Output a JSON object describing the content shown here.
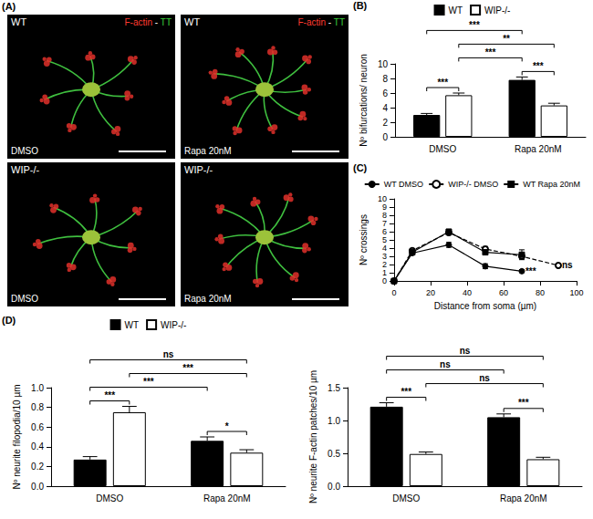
{
  "micrographs": {
    "panel_label": "(A)",
    "images": [
      {
        "genotype": "WT",
        "treatment": "DMSO",
        "stain": [
          {
            "text": "F-actin",
            "color": "#ff3b30"
          },
          {
            "text": " - ",
            "color": "#ffffff"
          },
          {
            "text": "TT",
            "color": "#3cd23c"
          }
        ]
      },
      {
        "genotype": "WT",
        "treatment": "Rapa 20nM",
        "stain": [
          {
            "text": "F-actin",
            "color": "#ff3b30"
          },
          {
            "text": " - ",
            "color": "#ffffff"
          },
          {
            "text": "TT",
            "color": "#3cd23c"
          }
        ]
      },
      {
        "genotype": "WIP-/-",
        "treatment": "DMSO"
      },
      {
        "genotype": "WIP-/-",
        "treatment": "Rapa 20nM"
      }
    ]
  },
  "chart_data": [
    {
      "panel_label": "(B)",
      "type": "bar",
      "categories": [
        "DMSO",
        "Rapa 20nM"
      ],
      "ylabel": "Nº bifurcations/ neuron",
      "ylim": [
        0,
        10
      ],
      "yticks": [
        0,
        2,
        4,
        6,
        8,
        10
      ],
      "grid": false,
      "legend": "top",
      "series": [
        {
          "name": "WT",
          "color": "#000000",
          "values": [
            3.0,
            7.8
          ],
          "errors": [
            0.2,
            0.4
          ]
        },
        {
          "name": "WIP-/-",
          "color": "#ffffff",
          "values": [
            5.7,
            4.3
          ],
          "errors": [
            0.3,
            0.3
          ]
        }
      ],
      "significance": [
        {
          "between": [
            [
              0,
              0
            ],
            [
              1,
              0
            ]
          ],
          "label": "***"
        },
        {
          "between": [
            [
              0,
              1
            ],
            [
              1,
              1
            ]
          ],
          "label": "***"
        },
        {
          "between": [
            [
              1,
              0
            ],
            [
              0,
              1
            ]
          ],
          "label": "***"
        },
        {
          "between": [
            [
              1,
              0
            ],
            [
              1,
              1
            ]
          ],
          "label": "**"
        },
        {
          "between": [
            [
              0,
              0
            ],
            [
              0,
              1
            ]
          ],
          "label": "***"
        }
      ]
    },
    {
      "panel_label": "(C)",
      "type": "line",
      "xlabel": "Distance from soma (µm)",
      "ylabel": "Nº crossings",
      "xlim": [
        0,
        100
      ],
      "xticks": [
        0,
        20,
        40,
        60,
        80,
        100
      ],
      "ylim": [
        0,
        10
      ],
      "yticks": [
        0,
        1,
        2,
        3,
        4,
        5,
        6,
        7,
        8,
        9,
        10
      ],
      "grid": false,
      "legend": "top",
      "series": [
        {
          "name": "WT DMSO",
          "color": "#000000",
          "marker": "circle",
          "line_style": "solid",
          "x": [
            0,
            10,
            30,
            50,
            70
          ],
          "values": [
            0,
            3.4,
            4.4,
            1.8,
            1.2
          ],
          "errors": [
            0,
            0.2,
            0.3,
            0.3,
            0.2
          ],
          "significance": "***"
        },
        {
          "name": "WIP-/- DMSO",
          "color": "#000000",
          "marker": "open_circle",
          "line_style": "dashed",
          "x": [
            0,
            10,
            30,
            50,
            70,
            90
          ],
          "values": [
            0,
            3.7,
            5.9,
            3.9,
            3.0,
            1.9
          ],
          "errors": [
            0,
            0.2,
            0.3,
            0.3,
            0.3,
            0.2
          ],
          "significance": "ns"
        },
        {
          "name": "WT Rapa 20nM",
          "color": "#000000",
          "marker": "square",
          "line_style": "solid",
          "x": [
            0,
            10,
            30,
            50,
            70
          ],
          "values": [
            0,
            3.5,
            6.0,
            3.5,
            3.2
          ],
          "errors": [
            0,
            0.3,
            0.3,
            0.3,
            0.6
          ]
        }
      ]
    },
    {
      "panel_label": "(D)",
      "type": "bar",
      "categories": [
        "DMSO",
        "Rapa 20nM"
      ],
      "ylabel": "Nº neurite filopodia/10 µm",
      "ylim": [
        0,
        1
      ],
      "yticks": [
        {
          "value": 0,
          "label": "0.0"
        },
        0.2,
        0.4,
        0.6,
        0.8,
        {
          "value": 1,
          "label": "1.0"
        }
      ],
      "grid": false,
      "legend": "top",
      "series": [
        {
          "name": "WT",
          "color": "#000000",
          "values": [
            0.27,
            0.46
          ],
          "errors": [
            0.03,
            0.04
          ]
        },
        {
          "name": "WIP-/-",
          "color": "#ffffff",
          "values": [
            0.75,
            0.34
          ],
          "errors": [
            0.06,
            0.03
          ]
        }
      ],
      "significance": [
        {
          "between": [
            [
              0,
              0
            ],
            [
              1,
              0
            ]
          ],
          "label": "***"
        },
        {
          "between": [
            [
              0,
              1
            ],
            [
              1,
              1
            ]
          ],
          "label": "*"
        },
        {
          "between": [
            [
              0,
              0
            ],
            [
              0,
              1
            ]
          ],
          "label": "***"
        },
        {
          "between": [
            [
              1,
              0
            ],
            [
              1,
              1
            ]
          ],
          "label": "***"
        },
        {
          "between": [
            [
              0,
              0
            ],
            [
              1,
              1
            ]
          ],
          "label": "ns"
        }
      ]
    },
    {
      "type": "bar",
      "categories": [
        "DMSO",
        "Rapa 20nM"
      ],
      "ylabel": "Nº neurite F-actin patches/10 µm",
      "ylim": [
        0,
        1.5
      ],
      "yticks": [
        {
          "value": 0,
          "label": "0.0"
        },
        0.5,
        {
          "value": 1,
          "label": "1.0"
        },
        1.5
      ],
      "grid": false,
      "series": [
        {
          "name": "WT",
          "color": "#000000",
          "values": [
            1.21,
            1.05
          ],
          "errors": [
            0.06,
            0.05
          ]
        },
        {
          "name": "WIP-/-",
          "color": "#ffffff",
          "values": [
            0.49,
            0.41
          ],
          "errors": [
            0.03,
            0.03
          ]
        }
      ],
      "significance": [
        {
          "between": [
            [
              0,
              0
            ],
            [
              1,
              0
            ]
          ],
          "label": "***"
        },
        {
          "between": [
            [
              0,
              1
            ],
            [
              1,
              1
            ]
          ],
          "label": "***"
        },
        {
          "between": [
            [
              1,
              0
            ],
            [
              1,
              1
            ]
          ],
          "label": "ns"
        },
        {
          "between": [
            [
              0,
              0
            ],
            [
              0,
              1
            ]
          ],
          "label": "ns"
        },
        {
          "between": [
            [
              0,
              0
            ],
            [
              1,
              1
            ]
          ],
          "label": "ns"
        }
      ]
    }
  ]
}
